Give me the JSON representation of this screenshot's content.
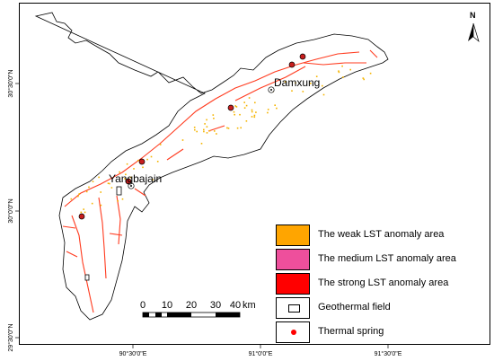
{
  "map": {
    "north_label": "N",
    "places": [
      {
        "name": "Damxung",
        "icon": "city-marker-icon"
      },
      {
        "name": "Yangbajain",
        "icon": "city-marker-icon"
      }
    ],
    "lon_ticks": [
      "90°30'0\"E",
      "91°0'0\"E",
      "91°30'0\"E"
    ],
    "lat_ticks": [
      "30°30'0\"N",
      "30°0'0\"N",
      "29°30'0\"N"
    ],
    "fault_color": "#ff3b1f",
    "anomaly_color": "#f5b400",
    "spring_color": "#c81e1e"
  },
  "scale_bar": {
    "labels": [
      "0",
      "10",
      "20",
      "30",
      "40"
    ],
    "unit": "km"
  },
  "legend": {
    "items": [
      {
        "label": "The weak LST anomaly area",
        "color": "#ffa500",
        "kind": "fill"
      },
      {
        "label": "The medium LST anomaly area",
        "color": "#ee4f9c",
        "kind": "fill"
      },
      {
        "label": "The strong LST anomaly area",
        "color": "#ff0000",
        "kind": "fill"
      },
      {
        "label": "Geothermal field",
        "color": "#ffffff",
        "kind": "rect-icon"
      },
      {
        "label": "Thermal spring",
        "color": "#ff0000",
        "kind": "dot-icon"
      }
    ]
  }
}
